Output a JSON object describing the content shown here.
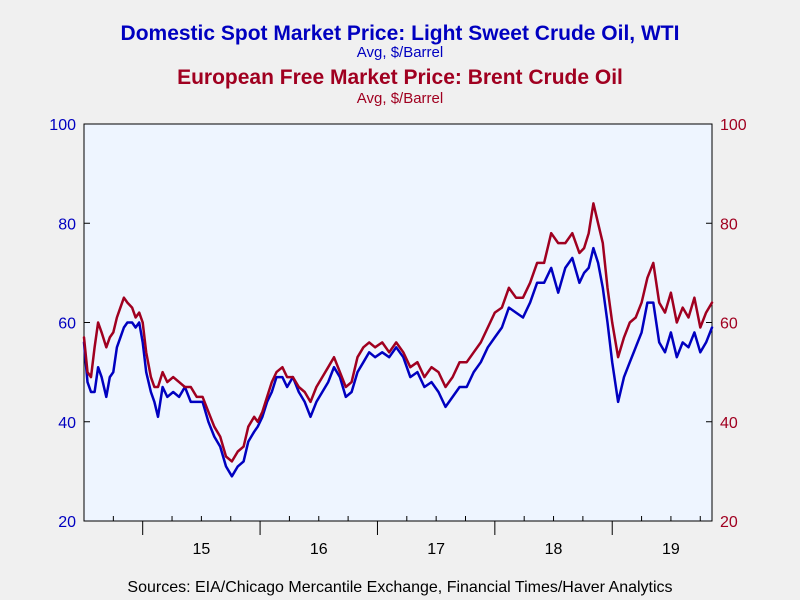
{
  "chart_data": {
    "type": "line",
    "titles": [
      {
        "text": "Domestic Spot Market Price: Light Sweet Crude Oil, WTI",
        "subtitle": "Avg, $/Barrel",
        "color": "#0000c0"
      },
      {
        "text": "European Free Market Price: Brent Crude Oil",
        "subtitle": "Avg, $/Barrel",
        "color": "#a00020"
      }
    ],
    "source": "Sources:  EIA/Chicago Mercantile Exchange, Financial Times/Haver Analytics",
    "x_tick_labels": [
      "15",
      "16",
      "17",
      "18",
      "19"
    ],
    "x_range_years": [
      2014.5,
      2019.85
    ],
    "ylim": [
      20,
      100
    ],
    "y_ticks": [
      20,
      40,
      60,
      80,
      100
    ],
    "left_axis_color": "#0000c0",
    "right_axis_color": "#a00020",
    "plot_background": "#eef5ff",
    "grid": false,
    "series": [
      {
        "axis": "left",
        "color": "#0000c0",
        "x": [
          2014.5,
          2014.53,
          2014.56,
          2014.59,
          2014.62,
          2014.65,
          2014.69,
          2014.72,
          2014.75,
          2014.78,
          2014.81,
          2014.84,
          2014.87,
          2014.91,
          2014.94,
          2014.97,
          2015.0,
          2015.03,
          2015.07,
          2015.1,
          2015.13,
          2015.17,
          2015.21,
          2015.26,
          2015.31,
          2015.36,
          2015.41,
          2015.46,
          2015.51,
          2015.56,
          2015.61,
          2015.66,
          2015.71,
          2015.76,
          2015.81,
          2015.86,
          2015.9,
          2015.95,
          2015.98,
          2016.02,
          2016.06,
          2016.1,
          2016.14,
          2016.19,
          2016.23,
          2016.28,
          2016.33,
          2016.38,
          2016.43,
          2016.48,
          2016.53,
          2016.58,
          2016.63,
          2016.68,
          2016.73,
          2016.78,
          2016.83,
          2016.88,
          2016.93,
          2016.98,
          2017.04,
          2017.1,
          2017.16,
          2017.22,
          2017.28,
          2017.34,
          2017.4,
          2017.46,
          2017.52,
          2017.58,
          2017.64,
          2017.7,
          2017.76,
          2017.82,
          2017.88,
          2017.94,
          2018.0,
          2018.06,
          2018.12,
          2018.18,
          2018.24,
          2018.3,
          2018.36,
          2018.42,
          2018.48,
          2018.54,
          2018.6,
          2018.66,
          2018.72,
          2018.76,
          2018.8,
          2018.84,
          2018.88,
          2018.92,
          2018.96,
          2019.0,
          2019.05,
          2019.1,
          2019.15,
          2019.2,
          2019.25,
          2019.3,
          2019.35,
          2019.4,
          2019.45,
          2019.5,
          2019.55,
          2019.6,
          2019.65,
          2019.7,
          2019.75,
          2019.8,
          2019.85
        ],
        "y": [
          56,
          48,
          46,
          46,
          51,
          49,
          45,
          49,
          50,
          55,
          57,
          59,
          60,
          60,
          59,
          60,
          56,
          50,
          46,
          44,
          41,
          47,
          45,
          46,
          45,
          47,
          44,
          44,
          44,
          40,
          37,
          35,
          31,
          29,
          31,
          32,
          36,
          38,
          39,
          41,
          44,
          46,
          49,
          49,
          47,
          49,
          46,
          44,
          41,
          44,
          46,
          48,
          51,
          49,
          45,
          46,
          50,
          52,
          54,
          53,
          54,
          53,
          55,
          53,
          49,
          50,
          47,
          48,
          46,
          43,
          45,
          47,
          47,
          50,
          52,
          55,
          57,
          59,
          63,
          62,
          61,
          64,
          68,
          68,
          71,
          66,
          71,
          73,
          68,
          70,
          71,
          75,
          72,
          67,
          60,
          52,
          44,
          49,
          52,
          55,
          58,
          64,
          64,
          56,
          54,
          58,
          53,
          56,
          55,
          58,
          54,
          56,
          59
        ],
        "label_series": "WTI"
      },
      {
        "axis": "right",
        "color": "#a00020",
        "x": [
          2014.5,
          2014.53,
          2014.56,
          2014.59,
          2014.62,
          2014.65,
          2014.69,
          2014.72,
          2014.75,
          2014.78,
          2014.81,
          2014.84,
          2014.87,
          2014.91,
          2014.94,
          2014.97,
          2015.0,
          2015.03,
          2015.07,
          2015.1,
          2015.13,
          2015.17,
          2015.21,
          2015.26,
          2015.31,
          2015.36,
          2015.41,
          2015.46,
          2015.51,
          2015.56,
          2015.61,
          2015.66,
          2015.71,
          2015.76,
          2015.81,
          2015.86,
          2015.9,
          2015.95,
          2015.98,
          2016.02,
          2016.06,
          2016.1,
          2016.14,
          2016.19,
          2016.23,
          2016.28,
          2016.33,
          2016.38,
          2016.43,
          2016.48,
          2016.53,
          2016.58,
          2016.63,
          2016.68,
          2016.73,
          2016.78,
          2016.83,
          2016.88,
          2016.93,
          2016.98,
          2017.04,
          2017.1,
          2017.16,
          2017.22,
          2017.28,
          2017.34,
          2017.4,
          2017.46,
          2017.52,
          2017.58,
          2017.64,
          2017.7,
          2017.76,
          2017.82,
          2017.88,
          2017.94,
          2018.0,
          2018.06,
          2018.12,
          2018.18,
          2018.24,
          2018.3,
          2018.36,
          2018.42,
          2018.48,
          2018.54,
          2018.6,
          2018.66,
          2018.72,
          2018.76,
          2018.8,
          2018.84,
          2018.88,
          2018.92,
          2018.96,
          2019.0,
          2019.05,
          2019.1,
          2019.15,
          2019.2,
          2019.25,
          2019.3,
          2019.35,
          2019.4,
          2019.45,
          2019.5,
          2019.55,
          2019.6,
          2019.65,
          2019.7,
          2019.75,
          2019.8,
          2019.85
        ],
        "y": [
          57,
          50,
          49,
          55,
          60,
          58,
          55,
          57,
          58,
          61,
          63,
          65,
          64,
          63,
          61,
          62,
          60,
          54,
          49,
          47,
          47,
          50,
          48,
          49,
          48,
          47,
          47,
          45,
          45,
          42,
          39,
          37,
          33,
          32,
          34,
          35,
          39,
          41,
          40,
          42,
          45,
          48,
          50,
          51,
          49,
          49,
          47,
          46,
          44,
          47,
          49,
          51,
          53,
          50,
          47,
          48,
          53,
          55,
          56,
          55,
          56,
          54,
          56,
          54,
          51,
          52,
          49,
          51,
          50,
          47,
          49,
          52,
          52,
          54,
          56,
          59,
          62,
          63,
          67,
          65,
          65,
          68,
          72,
          72,
          78,
          76,
          76,
          78,
          74,
          75,
          78,
          84,
          80,
          76,
          67,
          60,
          53,
          57,
          60,
          61,
          64,
          69,
          72,
          64,
          62,
          66,
          60,
          63,
          61,
          65,
          59,
          62,
          64
        ],
        "label_series": "Brent"
      }
    ]
  }
}
